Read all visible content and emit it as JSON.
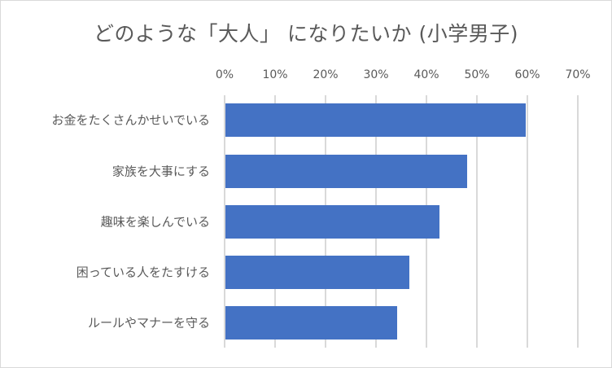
{
  "chart_data": {
    "type": "bar",
    "orientation": "horizontal",
    "title": "どのような「大人」 になりたいか (小学男子)",
    "xlabel": "",
    "ylabel": "",
    "xlim": [
      0,
      0.7
    ],
    "x_ticks": [
      "0%",
      "10%",
      "20%",
      "30%",
      "40%",
      "50%",
      "60%",
      "70%"
    ],
    "x_axis_position": "top",
    "grid": true,
    "legend": null,
    "categories": [
      "お金をたくさんかせいでいる",
      "家族を大事にする",
      "趣味を楽しんでいる",
      "困っている人をたすける",
      "ルールやマナーを守る"
    ],
    "values": [
      0.595,
      0.479,
      0.424,
      0.365,
      0.34
    ],
    "bar_color": "#4472c4"
  },
  "colors": {
    "bar": "#4472c4",
    "grid": "#d9d9d9",
    "text": "#595959",
    "border": "#d9d9d9"
  }
}
